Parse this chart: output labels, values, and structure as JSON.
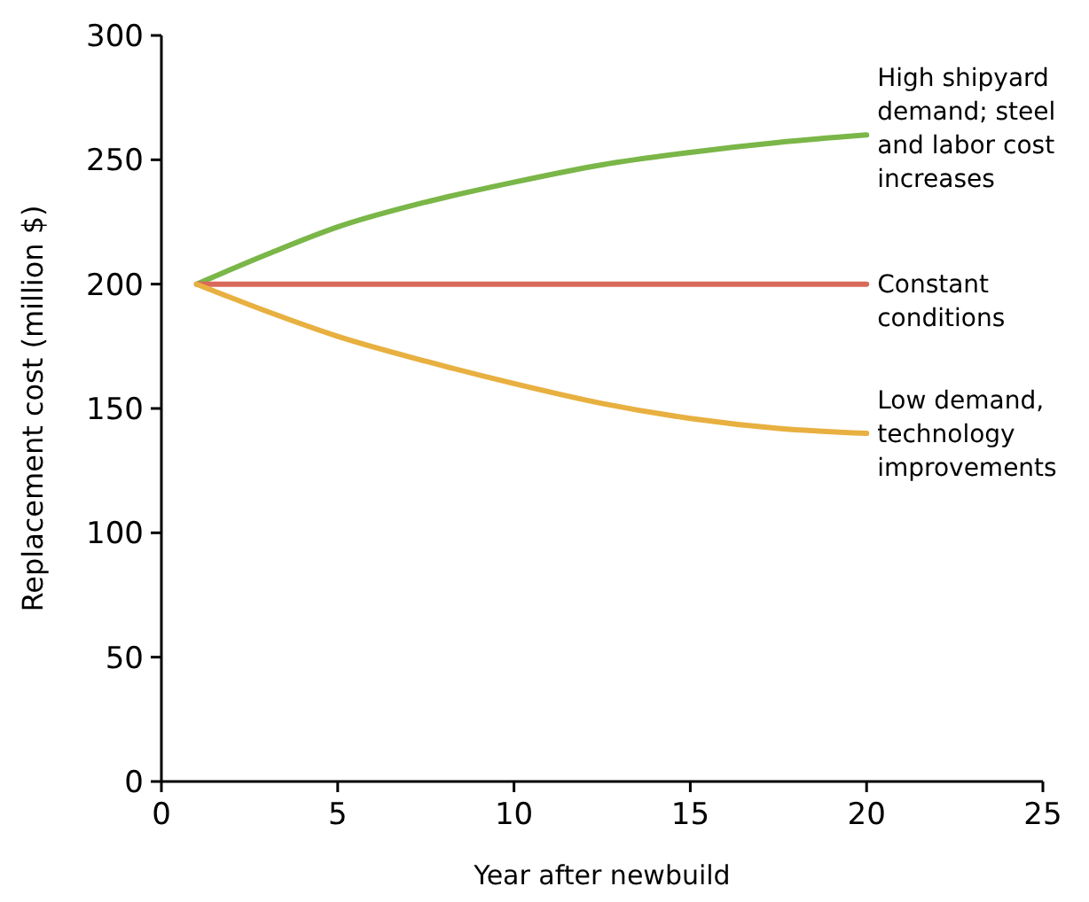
{
  "chart_data": {
    "type": "line",
    "xlabel": "Year after newbuild",
    "ylabel": "Replacement cost (million $)",
    "xlim": [
      0,
      25
    ],
    "xticks": [
      0,
      5,
      10,
      15,
      20,
      25
    ],
    "ylim": [
      0,
      300
    ],
    "yticks": [
      0,
      50,
      100,
      150,
      200,
      250,
      300
    ],
    "grid": false,
    "marker": "none",
    "line_style": "solid",
    "series": [
      {
        "color": "#7ab648",
        "x": [
          1,
          3,
          5,
          7.5,
          10,
          12.5,
          15,
          17.5,
          20
        ],
        "values": [
          200,
          212,
          223,
          233,
          241,
          248,
          253,
          257,
          260
        ]
      },
      {
        "color": "#d9695a",
        "x": [
          1,
          20
        ],
        "values": [
          200,
          200
        ]
      },
      {
        "color": "#e8b040",
        "x": [
          1,
          3,
          5,
          7.5,
          10,
          12.5,
          15,
          17.5,
          20
        ],
        "values": [
          200,
          189,
          179,
          169,
          160,
          152,
          146,
          142,
          140
        ]
      }
    ],
    "annotations": [
      "High shipyard\ndemand; steel\nand labor cost\nincreases",
      "Constant\nconditions",
      "Low demand,\ntechnology\nimprovements"
    ]
  }
}
